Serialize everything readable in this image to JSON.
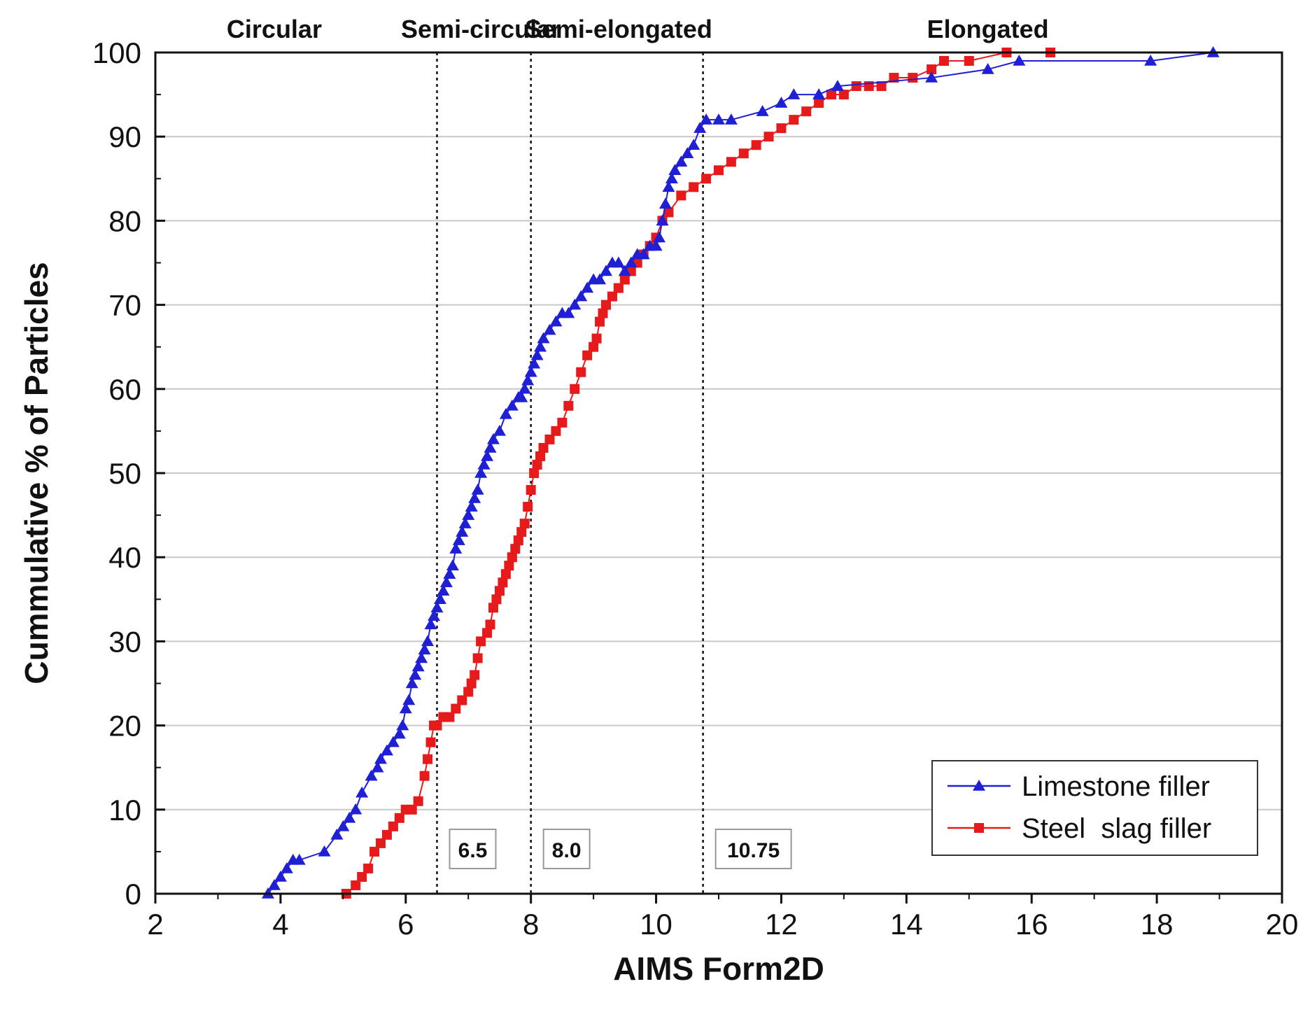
{
  "chart_data": {
    "type": "line",
    "title": "",
    "xlabel": "AIMS Form2D",
    "ylabel": "Cummulative % of Particles",
    "xlim": [
      2,
      20
    ],
    "ylim": [
      0,
      100
    ],
    "xticks": [
      2,
      4,
      6,
      8,
      10,
      12,
      14,
      16,
      18,
      20
    ],
    "yticks": [
      0,
      10,
      20,
      30,
      40,
      50,
      60,
      70,
      80,
      90,
      100
    ],
    "grid": "horizontal",
    "legend_position": "bottom-right",
    "regions": [
      {
        "label": "Circular",
        "x": 3.9
      },
      {
        "label": "Semi-circular",
        "x": 7.2
      },
      {
        "label": "Semi-elongated",
        "x": 9.4
      },
      {
        "label": "Elongated",
        "x": 15.3
      }
    ],
    "thresholds": [
      {
        "x": 6.5,
        "label": "6.5"
      },
      {
        "x": 8.0,
        "label": "8.0"
      },
      {
        "x": 10.75,
        "label": "10.75"
      }
    ],
    "series": [
      {
        "name": "Limestone filler",
        "color": "#1f1fd6",
        "marker": "triangle",
        "x": [
          3.8,
          3.9,
          4.0,
          4.1,
          4.2,
          4.3,
          4.7,
          4.9,
          5.0,
          5.1,
          5.2,
          5.3,
          5.45,
          5.55,
          5.6,
          5.7,
          5.8,
          5.9,
          5.95,
          6.0,
          6.05,
          6.1,
          6.15,
          6.2,
          6.25,
          6.3,
          6.35,
          6.4,
          6.45,
          6.5,
          6.55,
          6.6,
          6.65,
          6.7,
          6.75,
          6.8,
          6.85,
          6.9,
          6.95,
          7.0,
          7.05,
          7.1,
          7.15,
          7.2,
          7.25,
          7.3,
          7.35,
          7.4,
          7.5,
          7.6,
          7.7,
          7.8,
          7.85,
          7.9,
          7.95,
          8.0,
          8.05,
          8.1,
          8.15,
          8.2,
          8.3,
          8.4,
          8.5,
          8.6,
          8.7,
          8.8,
          8.9,
          9.0,
          9.1,
          9.2,
          9.3,
          9.4,
          9.5,
          9.6,
          9.7,
          9.8,
          9.9,
          10.0,
          10.05,
          10.1,
          10.15,
          10.2,
          10.25,
          10.3,
          10.4,
          10.5,
          10.6,
          10.7,
          10.8,
          11.0,
          11.2,
          11.7,
          12.0,
          12.2,
          12.6,
          12.9,
          14.4,
          15.3,
          15.8,
          17.9,
          18.9
        ],
        "y": [
          0,
          1,
          2,
          3,
          4,
          4,
          5,
          7,
          8,
          9,
          10,
          12,
          14,
          15,
          16,
          17,
          18,
          19,
          20,
          22,
          23,
          25,
          26,
          27,
          28,
          29,
          30,
          32,
          33,
          34,
          35,
          36,
          37,
          38,
          39,
          41,
          42,
          43,
          44,
          45,
          46,
          47,
          48,
          50,
          51,
          52,
          53,
          54,
          55,
          57,
          58,
          59,
          59,
          60,
          61,
          62,
          63,
          64,
          65,
          66,
          67,
          68,
          69,
          69,
          70,
          71,
          72,
          73,
          73,
          74,
          75,
          75,
          74,
          75,
          76,
          76,
          77,
          77,
          78,
          80,
          82,
          84,
          85,
          86,
          87,
          88,
          89,
          91,
          92,
          92,
          92,
          93,
          94,
          95,
          95,
          96,
          97,
          98,
          99,
          99,
          100
        ]
      },
      {
        "name": "Steel  slag filler",
        "color": "#e61a1a",
        "marker": "square",
        "x": [
          5.05,
          5.2,
          5.3,
          5.4,
          5.5,
          5.6,
          5.7,
          5.8,
          5.9,
          6.0,
          6.1,
          6.2,
          6.3,
          6.35,
          6.4,
          6.45,
          6.5,
          6.6,
          6.7,
          6.8,
          6.9,
          7.0,
          7.05,
          7.1,
          7.15,
          7.2,
          7.3,
          7.35,
          7.4,
          7.45,
          7.5,
          7.55,
          7.6,
          7.65,
          7.7,
          7.75,
          7.8,
          7.85,
          7.9,
          7.95,
          8.0,
          8.05,
          8.1,
          8.15,
          8.2,
          8.3,
          8.4,
          8.5,
          8.6,
          8.7,
          8.8,
          8.9,
          9.0,
          9.05,
          9.1,
          9.15,
          9.2,
          9.3,
          9.4,
          9.5,
          9.6,
          9.7,
          9.8,
          9.9,
          10.0,
          10.1,
          10.2,
          10.4,
          10.6,
          10.8,
          11.0,
          11.2,
          11.4,
          11.6,
          11.8,
          12.0,
          12.2,
          12.4,
          12.6,
          12.8,
          13.0,
          13.2,
          13.4,
          13.6,
          13.8,
          14.1,
          14.4,
          14.6,
          15.0,
          15.6,
          16.3
        ],
        "y": [
          0,
          1,
          2,
          3,
          5,
          6,
          7,
          8,
          9,
          10,
          10,
          11,
          14,
          16,
          18,
          20,
          20,
          21,
          21,
          22,
          23,
          24,
          25,
          26,
          28,
          30,
          31,
          32,
          34,
          35,
          36,
          37,
          38,
          39,
          40,
          41,
          42,
          43,
          44,
          46,
          48,
          50,
          51,
          52,
          53,
          54,
          55,
          56,
          58,
          60,
          62,
          64,
          65,
          66,
          68,
          69,
          70,
          71,
          72,
          73,
          74,
          75,
          76,
          77,
          78,
          80,
          81,
          83,
          84,
          85,
          86,
          87,
          88,
          89,
          90,
          91,
          92,
          93,
          94,
          95,
          95,
          96,
          96,
          96,
          97,
          97,
          98,
          99,
          99,
          100,
          100
        ]
      }
    ]
  }
}
